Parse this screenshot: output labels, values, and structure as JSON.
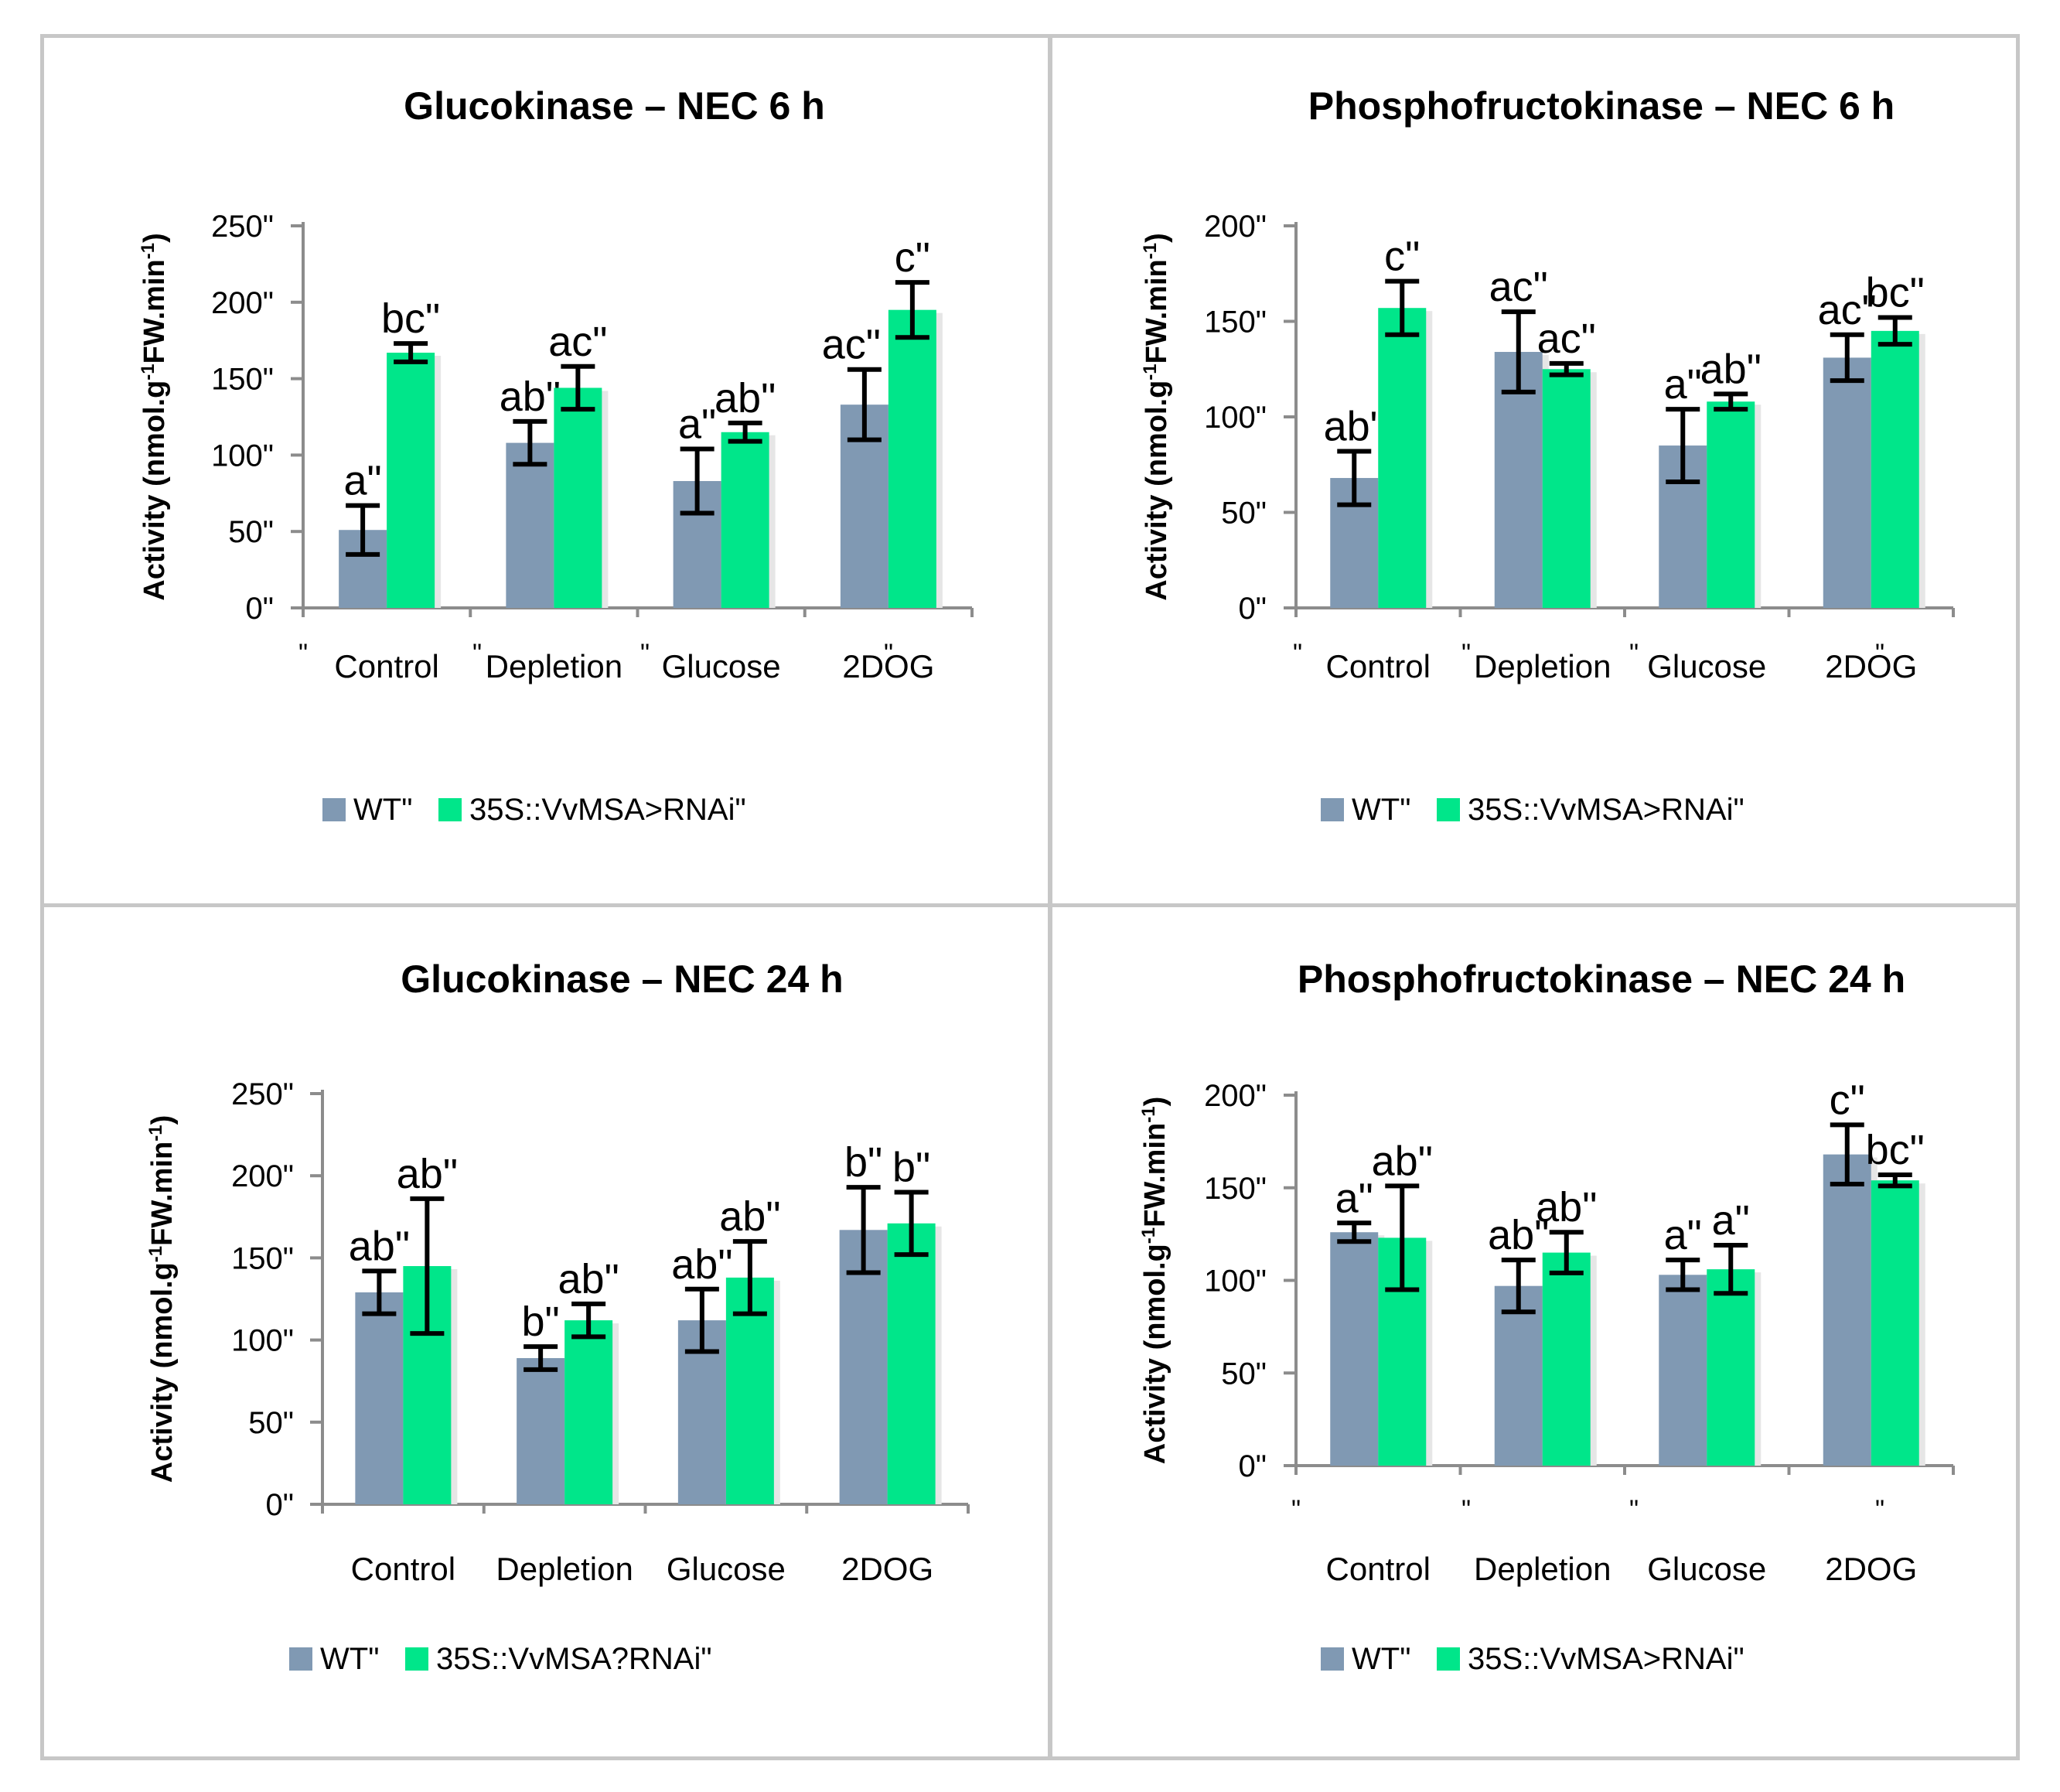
{
  "colors": {
    "wt": "#8099b3",
    "rnai": "#00e68a",
    "axis": "#8c8c8c",
    "text": "#000000"
  },
  "chart_data": [
    {
      "type": "bar",
      "title": "Glucokinase – NEC 6 h",
      "ylabel": "Activity (nmol.g-1FW.min-1)",
      "ylim": [
        0,
        250
      ],
      "yticks": [
        "0\"",
        "50\"",
        "100\"",
        "150\"",
        "200\"",
        "250\""
      ],
      "categories": [
        "Control",
        "Depletion",
        "Glucose",
        "2DOG"
      ],
      "category_marks": [
        "\"",
        "\"",
        "\"",
        "\""
      ],
      "legend": [
        "WT\"",
        "35S::VvMSA>RNAi\""
      ],
      "series": [
        {
          "name": "WT\"",
          "values": [
            51,
            108,
            83,
            133
          ],
          "errors": [
            16,
            14,
            21,
            23
          ],
          "letters": [
            "a\"",
            "ab\"",
            "a\"",
            "ac\" \""
          ]
        },
        {
          "name": "35S::VvMSA>RNAi\"",
          "values": [
            167,
            144,
            115,
            195
          ],
          "errors": [
            6,
            14,
            6,
            18
          ],
          "letters": [
            "bc\"",
            "ac\"",
            "ab\"",
            "c\""
          ]
        }
      ]
    },
    {
      "type": "bar",
      "title": "Phosphofructokinase – NEC 6 h",
      "ylabel": "Activity (nmol.g-1FW.min-1)",
      "ylim": [
        0,
        200
      ],
      "yticks": [
        "0\"",
        "50\"",
        "100\"",
        "150\"",
        "200\""
      ],
      "categories": [
        "Control",
        "Depletion",
        "Glucose",
        "2DOG"
      ],
      "category_marks": [
        "\"",
        "\"",
        "\"",
        "\""
      ],
      "legend": [
        "WT\"",
        "35S::VvMSA>RNAi\""
      ],
      "series": [
        {
          "name": "WT\"",
          "values": [
            68,
            134,
            85,
            131
          ],
          "errors": [
            14,
            21,
            19,
            12
          ],
          "letters": [
            "ab\"",
            "ac\"",
            "a\"",
            "ac\""
          ]
        },
        {
          "name": "35S::VvMSA>RNAi\"",
          "values": [
            157,
            125,
            108,
            145
          ],
          "errors": [
            14,
            3,
            4,
            7
          ],
          "letters": [
            "c\"",
            "ac\"",
            "ab\"",
            "bc\""
          ]
        }
      ]
    },
    {
      "type": "bar",
      "title": "Glucokinase – NEC 24 h",
      "ylabel": "Activity (nmol.g-1FW.min-1)",
      "ylim": [
        0,
        250
      ],
      "yticks": [
        "0\"",
        "50\"",
        "100\"",
        "150\"",
        "200\"",
        "250\""
      ],
      "categories": [
        "Control",
        "Depletion",
        "Glucose",
        "2DOG"
      ],
      "category_marks": [],
      "legend": [
        "WT\"",
        "35S::VvMSA?RNAi\""
      ],
      "series": [
        {
          "name": "WT\"",
          "values": [
            129,
            89,
            112,
            167
          ],
          "errors": [
            13,
            7,
            19,
            26
          ],
          "letters": [
            "ab\"",
            "b\"",
            "ab\"",
            "b\""
          ]
        },
        {
          "name": "35S::VvMSA?RNAi\"",
          "values": [
            145,
            112,
            138,
            171
          ],
          "errors": [
            41,
            10,
            22,
            19
          ],
          "letters": [
            "ab\"",
            "ab\"",
            "ab\"",
            "b\""
          ]
        }
      ]
    },
    {
      "type": "bar",
      "title": "Phosphofructokinase – NEC 24 h",
      "ylabel": "Activity (nmol.g-1FW.min-1)",
      "ylim": [
        0,
        200
      ],
      "yticks": [
        "0\"",
        "50\"",
        "100\"",
        "150\"",
        "200\""
      ],
      "categories": [
        "Control",
        "Depletion",
        "Glucose",
        "2DOG"
      ],
      "category_marks": [
        "\"",
        "\"",
        "\"",
        "\""
      ],
      "legend": [
        "WT\"",
        "35S::VvMSA>RNAi\""
      ],
      "series": [
        {
          "name": "WT\"",
          "values": [
            126,
            97,
            103,
            168
          ],
          "errors": [
            5,
            14,
            8,
            16
          ],
          "letters": [
            "a\"",
            "ab\"",
            "a\"",
            "c\""
          ]
        },
        {
          "name": "35S::VvMSA>RNAi\"",
          "values": [
            123,
            115,
            106,
            154
          ],
          "errors": [
            28,
            11,
            13,
            3
          ],
          "letters": [
            "ab\"",
            "ab\"",
            "a\"",
            "bc\""
          ]
        }
      ]
    }
  ]
}
